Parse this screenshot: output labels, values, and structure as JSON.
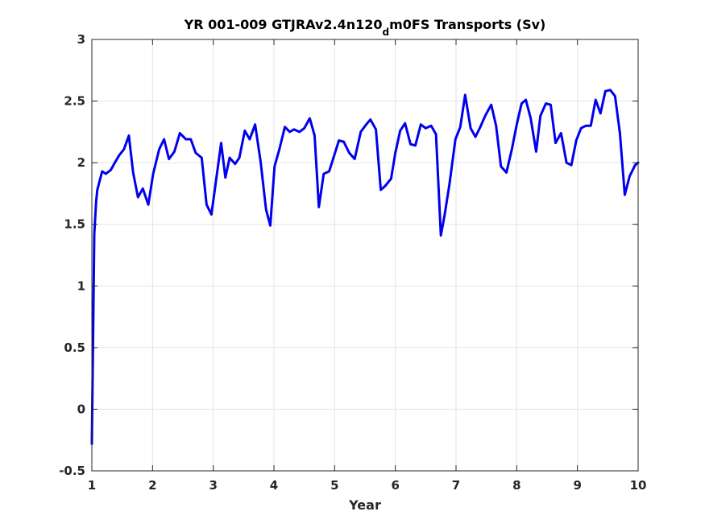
{
  "chart_data": {
    "type": "line",
    "title": {
      "prefix": "YR 001-009 GTJRAv2.4n120",
      "subscript": "d",
      "suffix": "m0FS Transports (Sv)"
    },
    "xlabel": "Year",
    "ylabel": "",
    "xlim": [
      1,
      10
    ],
    "ylim": [
      -0.5,
      3
    ],
    "xticks": [
      1,
      2,
      3,
      4,
      5,
      6,
      7,
      8,
      9,
      10
    ],
    "xtick_labels": [
      "1",
      "2",
      "3",
      "4",
      "5",
      "6",
      "7",
      "8",
      "9",
      "10"
    ],
    "yticks": [
      -0.5,
      0,
      0.5,
      1,
      1.5,
      2,
      2.5,
      3
    ],
    "ytick_labels": [
      "-0.5",
      "0",
      "0.5",
      "1",
      "1.5",
      "2",
      "2.5",
      "3"
    ],
    "grid": true,
    "line_color": "#0000ee",
    "grid_color": "#e3e3e3",
    "axis_color": "#262626",
    "series": [
      {
        "x": [
          1.0,
          1.02,
          1.04,
          1.07,
          1.09,
          1.17,
          1.23,
          1.31,
          1.39,
          1.45,
          1.53,
          1.61,
          1.68,
          1.76,
          1.84,
          1.93,
          2.01,
          2.11,
          2.19,
          2.27,
          2.36,
          2.45,
          2.55,
          2.63,
          2.71,
          2.81,
          2.89,
          2.97,
          3.05,
          3.13,
          3.2,
          3.27,
          3.36,
          3.43,
          3.52,
          3.6,
          3.69,
          3.78,
          3.87,
          3.94,
          4.01,
          4.09,
          4.18,
          4.26,
          4.33,
          4.42,
          4.5,
          4.59,
          4.67,
          4.74,
          4.82,
          4.91,
          5.0,
          5.07,
          5.15,
          5.24,
          5.33,
          5.43,
          5.52,
          5.59,
          5.68,
          5.76,
          5.83,
          5.93,
          6.0,
          6.08,
          6.16,
          6.25,
          6.33,
          6.42,
          6.5,
          6.59,
          6.67,
          6.75,
          6.81,
          6.89,
          6.99,
          7.07,
          7.15,
          7.24,
          7.32,
          7.4,
          7.48,
          7.58,
          7.66,
          7.74,
          7.83,
          7.92,
          8.0,
          8.08,
          8.15,
          8.23,
          8.32,
          8.39,
          8.48,
          8.56,
          8.64,
          8.73,
          8.82,
          8.9,
          8.98,
          9.06,
          9.14,
          9.22,
          9.3,
          9.38,
          9.46,
          9.54,
          9.62,
          9.7,
          9.78,
          9.86,
          9.95,
          10.0
        ],
        "y": [
          -0.28,
          0.57,
          1.42,
          1.68,
          1.78,
          1.93,
          1.91,
          1.94,
          2.01,
          2.06,
          2.11,
          2.22,
          1.92,
          1.72,
          1.79,
          1.66,
          1.91,
          2.11,
          2.19,
          2.03,
          2.09,
          2.24,
          2.19,
          2.19,
          2.08,
          2.04,
          1.66,
          1.58,
          1.87,
          2.16,
          1.88,
          2.04,
          1.99,
          2.04,
          2.26,
          2.19,
          2.31,
          2.01,
          1.62,
          1.49,
          1.97,
          2.11,
          2.29,
          2.25,
          2.27,
          2.25,
          2.28,
          2.36,
          2.22,
          1.64,
          1.91,
          1.93,
          2.07,
          2.18,
          2.17,
          2.08,
          2.03,
          2.25,
          2.31,
          2.35,
          2.27,
          1.78,
          1.81,
          1.87,
          2.08,
          2.26,
          2.32,
          2.15,
          2.14,
          2.31,
          2.28,
          2.3,
          2.23,
          1.41,
          1.57,
          1.82,
          2.19,
          2.29,
          2.55,
          2.28,
          2.21,
          2.29,
          2.38,
          2.47,
          2.3,
          1.97,
          1.92,
          2.11,
          2.31,
          2.48,
          2.51,
          2.36,
          2.09,
          2.38,
          2.48,
          2.47,
          2.16,
          2.24,
          2.0,
          1.98,
          2.18,
          2.28,
          2.3,
          2.3,
          2.51,
          2.4,
          2.58,
          2.59,
          2.54,
          2.24,
          1.74,
          1.89,
          1.98,
          2.0
        ]
      }
    ]
  }
}
